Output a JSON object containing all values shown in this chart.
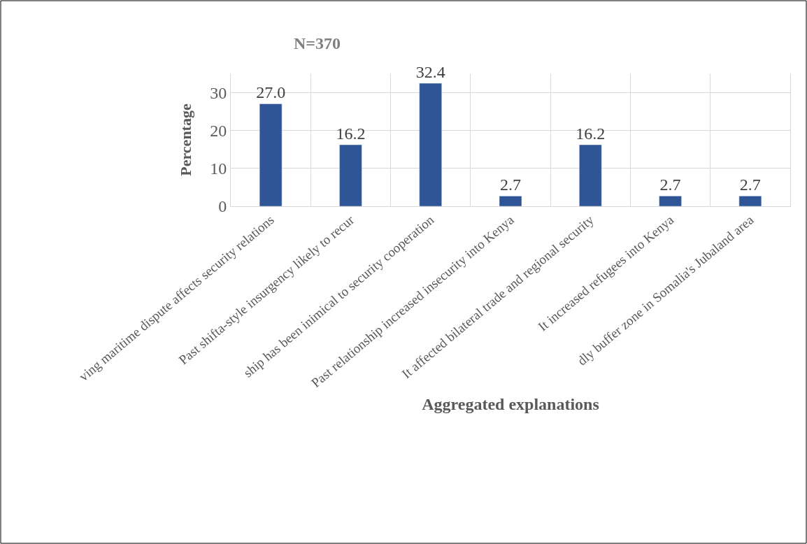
{
  "chart_data": {
    "type": "bar",
    "title": "N=370",
    "xlabel": "Aggregated explanations",
    "ylabel": "Percentage",
    "categories": [
      "ving maritime dispute affects security relations",
      "Past shifta-style insurgency likely to recur",
      "ship has been inimical to security cooperation",
      "Past relationship increased insecurity into Kenya",
      "It affected bilateral trade and regional security",
      "It increased refugees into Kenya",
      "dly buffer zone in Somalia's Jubaland area"
    ],
    "values": [
      27.0,
      16.2,
      32.4,
      2.7,
      16.2,
      2.7,
      2.7
    ],
    "value_labels": [
      "27.0",
      "16.2",
      "32.4",
      "2.7",
      "16.2",
      "2.7",
      "2.7"
    ],
    "color": "#2f5597",
    "ylim": [
      0,
      35
    ],
    "yticks": [
      0,
      10,
      20,
      30
    ],
    "grid": true,
    "legend": false
  }
}
